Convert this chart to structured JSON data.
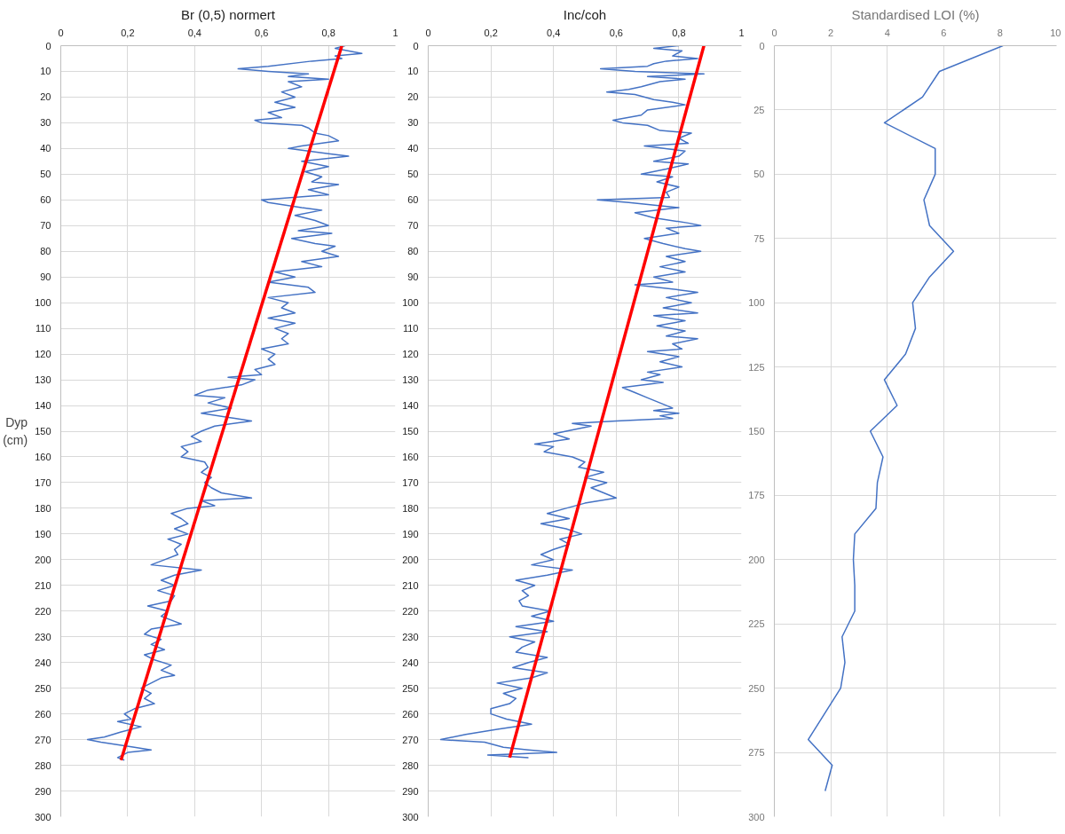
{
  "chart_data": [
    {
      "type": "line",
      "title": "Br (0,5) normert",
      "ylabel": "Dyp (cm)",
      "xlim": [
        0,
        1
      ],
      "xticks": [
        0,
        {
          "value": 0.2,
          "label": "0,2"
        },
        {
          "value": 0.4,
          "label": "0,4"
        },
        {
          "value": 0.6,
          "label": "0,6"
        },
        {
          "value": 0.8,
          "label": "0,8"
        },
        1
      ],
      "ylim": [
        300,
        0
      ],
      "yticks": [
        0,
        10,
        20,
        30,
        40,
        50,
        60,
        70,
        80,
        90,
        100,
        110,
        120,
        130,
        140,
        150,
        160,
        170,
        180,
        190,
        200,
        210,
        220,
        230,
        240,
        250,
        260,
        270,
        280,
        290,
        300
      ],
      "grid": true,
      "series": [
        {
          "color": "#4472c4",
          "x": [
            0.85,
            0.82,
            0.9,
            0.82,
            0.84,
            0.75,
            0.62,
            0.53,
            0.62,
            0.74,
            0.68,
            0.8,
            0.68,
            0.72,
            0.66,
            0.7,
            0.64,
            0.7,
            0.62,
            0.66,
            0.58,
            0.6,
            0.72,
            0.74,
            0.76,
            0.8,
            0.83,
            0.72,
            0.68,
            0.8,
            0.86,
            0.72,
            0.8,
            0.73,
            0.78,
            0.75,
            0.83,
            0.74,
            0.8,
            0.6,
            0.62,
            0.72,
            0.78,
            0.7,
            0.76,
            0.8,
            0.71,
            0.81,
            0.69,
            0.76,
            0.82,
            0.78,
            0.83,
            0.72,
            0.78,
            0.64,
            0.7,
            0.62,
            0.74,
            0.76,
            0.62,
            0.68,
            0.66,
            0.7,
            0.62,
            0.7,
            0.64,
            0.68,
            0.66,
            0.68,
            0.6,
            0.64,
            0.62,
            0.64,
            0.58,
            0.6,
            0.5,
            0.58,
            0.54,
            0.44,
            0.4,
            0.49,
            0.44,
            0.51,
            0.42,
            0.52,
            0.57,
            0.46,
            0.42,
            0.39,
            0.42,
            0.36,
            0.38,
            0.36,
            0.43,
            0.44,
            0.42,
            0.45,
            0.43,
            0.45,
            0.48,
            0.57,
            0.42,
            0.46,
            0.38,
            0.33,
            0.36,
            0.38,
            0.34,
            0.38,
            0.32,
            0.36,
            0.34,
            0.35,
            0.31,
            0.27,
            0.42,
            0.34,
            0.3,
            0.34,
            0.29,
            0.34,
            0.33,
            0.26,
            0.32,
            0.3,
            0.34,
            0.36,
            0.27,
            0.25,
            0.3,
            0.27,
            0.31,
            0.25,
            0.28,
            0.33,
            0.3,
            0.34,
            0.3,
            0.27,
            0.24,
            0.27,
            0.25,
            0.28,
            0.22,
            0.19,
            0.21,
            0.17,
            0.24,
            0.18,
            0.13,
            0.08,
            0.12,
            0.22,
            0.27,
            0.2,
            0.17,
            0.19
          ],
          "values": [
            0,
            1,
            3,
            4,
            5,
            6,
            8,
            9,
            10,
            11,
            12,
            13,
            14,
            16,
            18,
            20,
            22,
            24,
            26,
            28,
            29,
            30,
            31,
            32,
            34,
            35,
            37,
            39,
            40,
            42,
            43,
            45,
            47,
            49,
            51,
            53,
            54,
            56,
            58,
            60,
            61,
            63,
            64,
            66,
            68,
            70,
            72,
            73,
            75,
            77,
            78,
            80,
            82,
            84,
            86,
            88,
            90,
            92,
            94,
            96,
            98,
            100,
            102,
            104,
            106,
            108,
            110,
            112,
            114,
            116,
            118,
            120,
            122,
            124,
            126,
            128,
            129,
            130,
            132,
            134,
            136,
            137,
            139,
            141,
            143,
            145,
            146,
            148,
            150,
            152,
            154,
            156,
            158,
            160,
            162,
            164,
            166,
            168,
            170,
            172,
            174,
            176,
            177,
            179,
            180,
            182,
            184,
            186,
            188,
            190,
            192,
            194,
            196,
            198,
            200,
            202,
            204,
            206,
            208,
            210,
            212,
            214,
            216,
            218,
            220,
            222,
            224,
            225,
            227,
            229,
            231,
            233,
            235,
            237,
            239,
            241,
            243,
            245,
            246,
            248,
            250,
            252,
            254,
            256,
            258,
            260,
            262,
            263,
            265,
            267,
            269,
            270,
            271,
            273,
            274,
            275,
            277,
            278
          ]
        },
        {
          "color": "#ff0000",
          "x": [
            0.84,
            0.18
          ],
          "values": [
            0,
            278
          ]
        }
      ]
    },
    {
      "type": "line",
      "title": "Inc/coh",
      "xlim": [
        0,
        1
      ],
      "xticks": [
        0,
        {
          "value": 0.2,
          "label": "0,2"
        },
        {
          "value": 0.4,
          "label": "0,4"
        },
        {
          "value": 0.6,
          "label": "0,6"
        },
        {
          "value": 0.8,
          "label": "0,8"
        },
        1
      ],
      "ylim": [
        300,
        0
      ],
      "yticks": [
        0,
        10,
        20,
        30,
        40,
        50,
        60,
        70,
        80,
        90,
        100,
        110,
        120,
        130,
        140,
        150,
        160,
        170,
        180,
        190,
        200,
        210,
        220,
        230,
        240,
        250,
        260,
        270,
        280,
        290,
        300
      ],
      "grid": true,
      "series": [
        {
          "color": "#4472c4",
          "x": [
            0.8,
            0.72,
            0.81,
            0.78,
            0.86,
            0.76,
            0.72,
            0.7,
            0.55,
            0.66,
            0.88,
            0.7,
            0.82,
            0.74,
            0.68,
            0.64,
            0.57,
            0.66,
            0.72,
            0.78,
            0.82,
            0.7,
            0.68,
            0.59,
            0.62,
            0.7,
            0.74,
            0.84,
            0.8,
            0.83,
            0.69,
            0.82,
            0.8,
            0.72,
            0.83,
            0.76,
            0.68,
            0.78,
            0.73,
            0.8,
            0.76,
            0.77,
            0.54,
            0.64,
            0.8,
            0.66,
            0.72,
            0.83,
            0.87,
            0.76,
            0.8,
            0.69,
            0.75,
            0.82,
            0.87,
            0.76,
            0.82,
            0.74,
            0.82,
            0.72,
            0.78,
            0.66,
            0.8,
            0.86,
            0.76,
            0.84,
            0.75,
            0.86,
            0.72,
            0.82,
            0.73,
            0.82,
            0.76,
            0.86,
            0.78,
            0.81,
            0.7,
            0.8,
            0.74,
            0.81,
            0.7,
            0.74,
            0.68,
            0.75,
            0.62,
            0.66,
            0.7,
            0.74,
            0.78,
            0.72,
            0.8,
            0.74,
            0.78,
            0.6,
            0.46,
            0.52,
            0.44,
            0.4,
            0.45,
            0.34,
            0.4,
            0.37,
            0.46,
            0.5,
            0.48,
            0.56,
            0.5,
            0.57,
            0.52,
            0.56,
            0.6,
            0.5,
            0.44,
            0.38,
            0.45,
            0.36,
            0.44,
            0.49,
            0.42,
            0.45,
            0.4,
            0.36,
            0.4,
            0.33,
            0.46,
            0.38,
            0.28,
            0.34,
            0.3,
            0.32,
            0.29,
            0.3,
            0.39,
            0.33,
            0.4,
            0.28,
            0.38,
            0.26,
            0.34,
            0.3,
            0.28,
            0.38,
            0.32,
            0.27,
            0.38,
            0.33,
            0.22,
            0.3,
            0.24,
            0.28,
            0.26,
            0.2,
            0.2,
            0.25,
            0.33,
            0.22,
            0.12,
            0.04,
            0.18,
            0.24,
            0.32,
            0.41,
            0.19,
            0.32
          ],
          "values": [
            0,
            1,
            2,
            4,
            5,
            6,
            7,
            8,
            9,
            10,
            11,
            12,
            13,
            14,
            16,
            17,
            18,
            19,
            21,
            22,
            23,
            25,
            27,
            29,
            30,
            31,
            33,
            34,
            36,
            38,
            39,
            41,
            43,
            45,
            46,
            48,
            50,
            51,
            53,
            55,
            57,
            59,
            60,
            61,
            63,
            65,
            67,
            69,
            70,
            71,
            73,
            75,
            77,
            79,
            80,
            82,
            84,
            86,
            88,
            90,
            92,
            93,
            95,
            96,
            98,
            100,
            102,
            104,
            105,
            107,
            109,
            111,
            113,
            114,
            116,
            118,
            119,
            121,
            123,
            125,
            127,
            128,
            130,
            131,
            133,
            135,
            137,
            139,
            141,
            142,
            143,
            144,
            145,
            146,
            147,
            148,
            150,
            151,
            153,
            155,
            156,
            158,
            160,
            162,
            164,
            166,
            168,
            170,
            172,
            174,
            176,
            178,
            180,
            182,
            184,
            186,
            188,
            190,
            192,
            194,
            196,
            198,
            200,
            202,
            204,
            206,
            208,
            210,
            212,
            214,
            216,
            218,
            220,
            222,
            224,
            226,
            228,
            230,
            232,
            234,
            236,
            238,
            240,
            242,
            244,
            246,
            248,
            250,
            252,
            254,
            256,
            258,
            260,
            262,
            264,
            266,
            268,
            270,
            271,
            273,
            274,
            275,
            276,
            277
          ]
        },
        {
          "color": "#ff0000",
          "x": [
            0.88,
            0.26
          ],
          "values": [
            0,
            277
          ]
        }
      ]
    },
    {
      "type": "line",
      "title": "Standardised LOI (%)",
      "xlim": [
        0,
        10
      ],
      "xticks": [
        0,
        2,
        4,
        6,
        8,
        10
      ],
      "ylim": [
        300,
        0
      ],
      "yticks": [
        0,
        25,
        50,
        75,
        100,
        125,
        150,
        175,
        200,
        225,
        250,
        275,
        300
      ],
      "grid": true,
      "series": [
        {
          "color": "#4472c4",
          "x": [
            8.1,
            5.85,
            5.25,
            3.9,
            5.7,
            5.7,
            5.3,
            5.5,
            6.35,
            5.5,
            4.9,
            5.0,
            4.65,
            3.9,
            4.35,
            3.4,
            3.85,
            3.65,
            3.6,
            2.85,
            2.8,
            2.85,
            2.85,
            2.4,
            2.5,
            2.35,
            1.2,
            2.05,
            1.8
          ],
          "values": [
            0,
            10,
            20,
            30,
            40,
            50,
            60,
            70,
            80,
            90,
            100,
            110,
            120,
            130,
            140,
            150,
            160,
            170,
            180,
            190,
            200,
            210,
            220,
            230,
            240,
            250,
            270,
            280,
            290
          ]
        }
      ]
    }
  ]
}
